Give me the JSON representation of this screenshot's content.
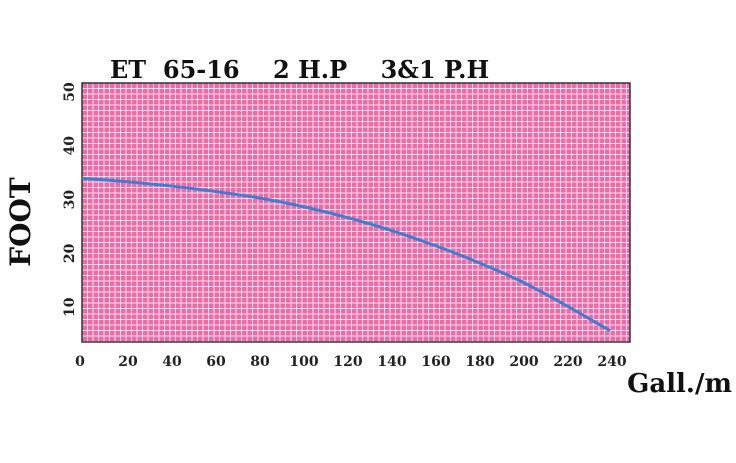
{
  "chart_data": {
    "type": "line",
    "title": "ET  65-16    2 H.P    3&1 P.H",
    "xlabel": "Gall./m",
    "ylabel": "FOOT",
    "xlim": [
      0,
      250
    ],
    "ylim": [
      0,
      53
    ],
    "x_ticks": [
      0,
      20,
      40,
      60,
      80,
      100,
      120,
      140,
      160,
      180,
      200,
      220,
      240
    ],
    "y_ticks": [
      10,
      20,
      30,
      40,
      50
    ],
    "grid": true,
    "background_color": "#f06aa8",
    "grid_color": "#ffffff",
    "line_color": "#3c7fd1",
    "series": [
      {
        "x": [
          0,
          20,
          40,
          60,
          80,
          100,
          120,
          140,
          160,
          180,
          200,
          220,
          240
        ],
        "y": [
          33.2,
          32.6,
          31.8,
          30.8,
          29.6,
          28.0,
          26.0,
          23.6,
          20.8,
          17.6,
          14.0,
          9.6,
          4.9
        ]
      }
    ]
  }
}
